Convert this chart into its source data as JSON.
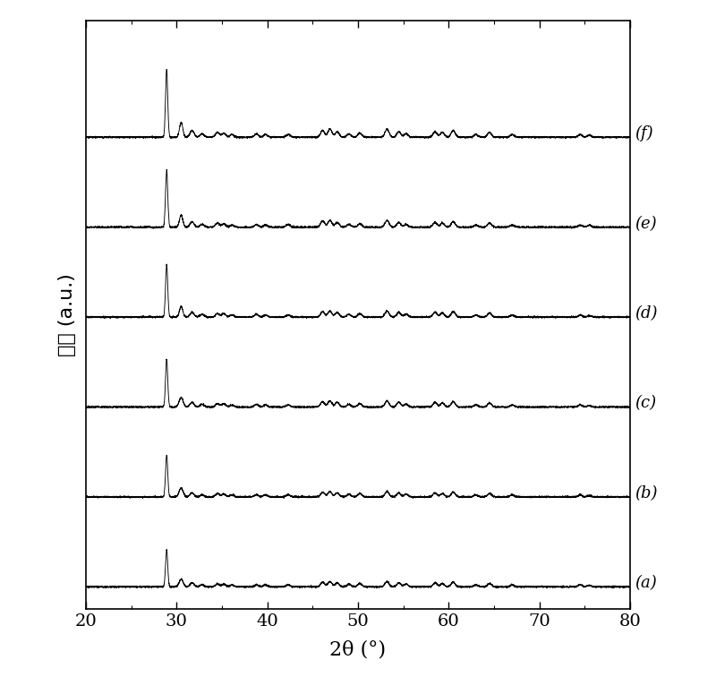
{
  "x_min": 20,
  "x_max": 80,
  "xlabel": "2θ (°)",
  "ylabel": "强度 (a.u.)",
  "labels": [
    "(f)",
    "(e)",
    "(d)",
    "(c)",
    "(b)",
    "(a)"
  ],
  "offsets": [
    5.0,
    4.0,
    3.0,
    2.0,
    1.0,
    0.0
  ],
  "peak_positions": [
    28.9,
    30.5,
    31.7,
    32.8,
    34.5,
    35.2,
    36.1,
    38.8,
    39.8,
    42.3,
    46.1,
    46.9,
    47.7,
    49.0,
    50.2,
    53.2,
    54.5,
    55.3,
    58.5,
    59.3,
    60.5,
    63.0,
    64.5,
    67.0,
    74.5,
    75.5
  ],
  "peak_heights_a": [
    1.0,
    0.22,
    0.1,
    0.05,
    0.07,
    0.06,
    0.04,
    0.05,
    0.04,
    0.04,
    0.1,
    0.12,
    0.08,
    0.05,
    0.06,
    0.12,
    0.08,
    0.05,
    0.08,
    0.07,
    0.1,
    0.04,
    0.07,
    0.04,
    0.04,
    0.03
  ],
  "peak_heights_b": [
    0.85,
    0.18,
    0.08,
    0.04,
    0.06,
    0.05,
    0.03,
    0.04,
    0.03,
    0.04,
    0.09,
    0.1,
    0.07,
    0.04,
    0.05,
    0.1,
    0.07,
    0.04,
    0.07,
    0.06,
    0.08,
    0.03,
    0.06,
    0.03,
    0.03,
    0.03
  ],
  "peak_heights_c": [
    0.78,
    0.16,
    0.07,
    0.04,
    0.05,
    0.05,
    0.03,
    0.04,
    0.03,
    0.03,
    0.08,
    0.09,
    0.07,
    0.04,
    0.05,
    0.09,
    0.07,
    0.04,
    0.07,
    0.06,
    0.08,
    0.03,
    0.06,
    0.03,
    0.03,
    0.02
  ],
  "peak_heights_d": [
    0.7,
    0.14,
    0.07,
    0.04,
    0.05,
    0.05,
    0.03,
    0.04,
    0.03,
    0.03,
    0.08,
    0.09,
    0.07,
    0.04,
    0.05,
    0.09,
    0.07,
    0.04,
    0.07,
    0.06,
    0.08,
    0.03,
    0.06,
    0.03,
    0.03,
    0.02
  ],
  "peak_heights_e": [
    0.62,
    0.13,
    0.06,
    0.03,
    0.05,
    0.04,
    0.03,
    0.03,
    0.03,
    0.03,
    0.07,
    0.08,
    0.06,
    0.04,
    0.05,
    0.08,
    0.06,
    0.04,
    0.06,
    0.05,
    0.07,
    0.03,
    0.05,
    0.03,
    0.03,
    0.02
  ],
  "peak_heights_f": [
    0.55,
    0.11,
    0.06,
    0.03,
    0.04,
    0.04,
    0.03,
    0.03,
    0.03,
    0.03,
    0.07,
    0.08,
    0.06,
    0.04,
    0.05,
    0.08,
    0.06,
    0.04,
    0.06,
    0.05,
    0.07,
    0.03,
    0.05,
    0.03,
    0.03,
    0.02
  ],
  "noise_amplitude": 0.006,
  "background_color": "#ffffff",
  "line_color": "#000000",
  "label_fontsize": 13,
  "axis_label_fontsize": 16,
  "tick_fontsize": 14
}
